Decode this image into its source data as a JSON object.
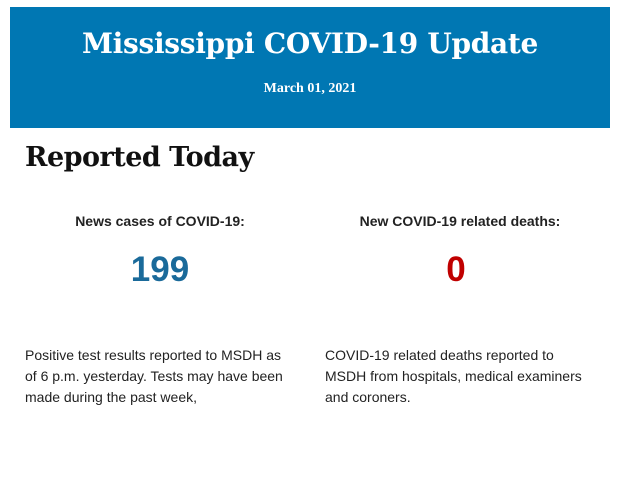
{
  "header": {
    "title": "Mississippi COVID-19 Update",
    "date": "March 01, 2021",
    "background": "#0077b3"
  },
  "section_title": "Reported Today",
  "stats": [
    {
      "label": "News cases of COVID-19:",
      "value": "199",
      "color": "#1a6a9a",
      "note_lines": [
        "Positive test results reported to MSDH as",
        "of 6 p.m. yesterday. Tests may have been",
        "made during the past week,"
      ]
    },
    {
      "label": "New COVID-19 related deaths:",
      "value": "0",
      "color": "#c00000",
      "note_lines": [
        "COVID-19 related deaths reported to",
        "MSDH from hospitals, medical examiners",
        "and coroners."
      ]
    }
  ]
}
